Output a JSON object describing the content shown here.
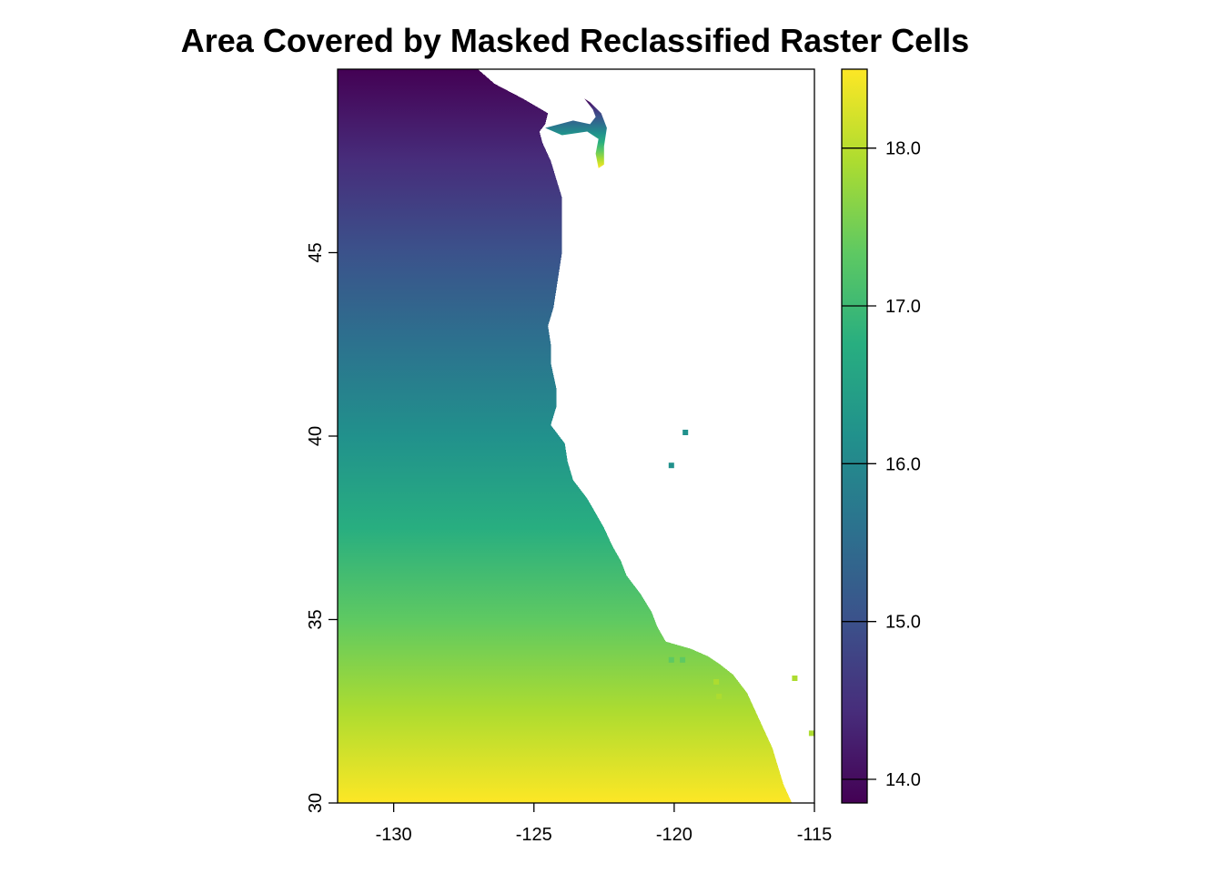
{
  "chart_data": {
    "type": "heatmap",
    "title": "Area Covered by Masked Reclassified Raster Cells",
    "xlabel": "",
    "ylabel": "",
    "xlim": [
      -132,
      -115
    ],
    "ylim": [
      30,
      50
    ],
    "x_ticks": [
      -130,
      -125,
      -120,
      -115
    ],
    "x_tick_labels": [
      "-130",
      "-125",
      "-120",
      "-115"
    ],
    "y_ticks": [
      30,
      35,
      40,
      45
    ],
    "y_tick_labels": [
      "30",
      "35",
      "40",
      "45"
    ],
    "legend": {
      "type": "colorbar",
      "placement": "right",
      "min": 13.85,
      "max": 18.5,
      "ticks": [
        14.0,
        15.0,
        16.0,
        17.0,
        18.0
      ],
      "tick_labels": [
        "14.0",
        "15.0",
        "16.0",
        "17.0",
        "18.0"
      ],
      "palette": "viridis"
    },
    "value_gradient": {
      "direction": "latitude",
      "value_at_lat_50": 13.85,
      "value_at_lat_30": 18.5
    },
    "coastline_lon_by_lat": [
      [
        30.0,
        -115.8
      ],
      [
        30.5,
        -116.1
      ],
      [
        31.0,
        -116.3
      ],
      [
        31.5,
        -116.5
      ],
      [
        32.0,
        -116.8
      ],
      [
        32.5,
        -117.1
      ],
      [
        33.0,
        -117.4
      ],
      [
        33.5,
        -117.9
      ],
      [
        33.8,
        -118.4
      ],
      [
        34.0,
        -118.8
      ],
      [
        34.2,
        -119.4
      ],
      [
        34.4,
        -120.3
      ],
      [
        34.8,
        -120.6
      ],
      [
        35.2,
        -120.8
      ],
      [
        35.7,
        -121.2
      ],
      [
        36.2,
        -121.7
      ],
      [
        36.6,
        -121.9
      ],
      [
        37.0,
        -122.2
      ],
      [
        37.5,
        -122.5
      ],
      [
        37.9,
        -122.8
      ],
      [
        38.3,
        -123.1
      ],
      [
        38.8,
        -123.6
      ],
      [
        39.3,
        -123.8
      ],
      [
        39.8,
        -123.9
      ],
      [
        40.3,
        -124.4
      ],
      [
        40.8,
        -124.2
      ],
      [
        41.3,
        -124.2
      ],
      [
        42.0,
        -124.4
      ],
      [
        42.5,
        -124.4
      ],
      [
        43.0,
        -124.5
      ],
      [
        43.5,
        -124.3
      ],
      [
        44.0,
        -124.2
      ],
      [
        44.5,
        -124.1
      ],
      [
        45.0,
        -124.0
      ],
      [
        45.5,
        -124.0
      ],
      [
        46.0,
        -124.0
      ],
      [
        46.5,
        -124.0
      ],
      [
        47.0,
        -124.2
      ],
      [
        47.5,
        -124.4
      ],
      [
        48.0,
        -124.7
      ],
      [
        48.3,
        -124.8
      ],
      [
        48.5,
        -124.6
      ],
      [
        48.8,
        -124.5
      ],
      [
        49.2,
        -125.4
      ],
      [
        49.6,
        -126.4
      ],
      [
        50.0,
        -127.0
      ]
    ],
    "extra_cells": [
      {
        "lat": 40.1,
        "lon": -119.6
      },
      {
        "lat": 39.2,
        "lon": -120.1
      },
      {
        "lat": 33.4,
        "lon": -115.7
      },
      {
        "lat": 31.9,
        "lon": -115.1
      },
      {
        "lat": 33.3,
        "lon": -118.5
      },
      {
        "lat": 32.9,
        "lon": -118.4
      },
      {
        "lat": 33.9,
        "lon": -120.1
      },
      {
        "lat": 33.9,
        "lon": -119.7
      }
    ]
  }
}
